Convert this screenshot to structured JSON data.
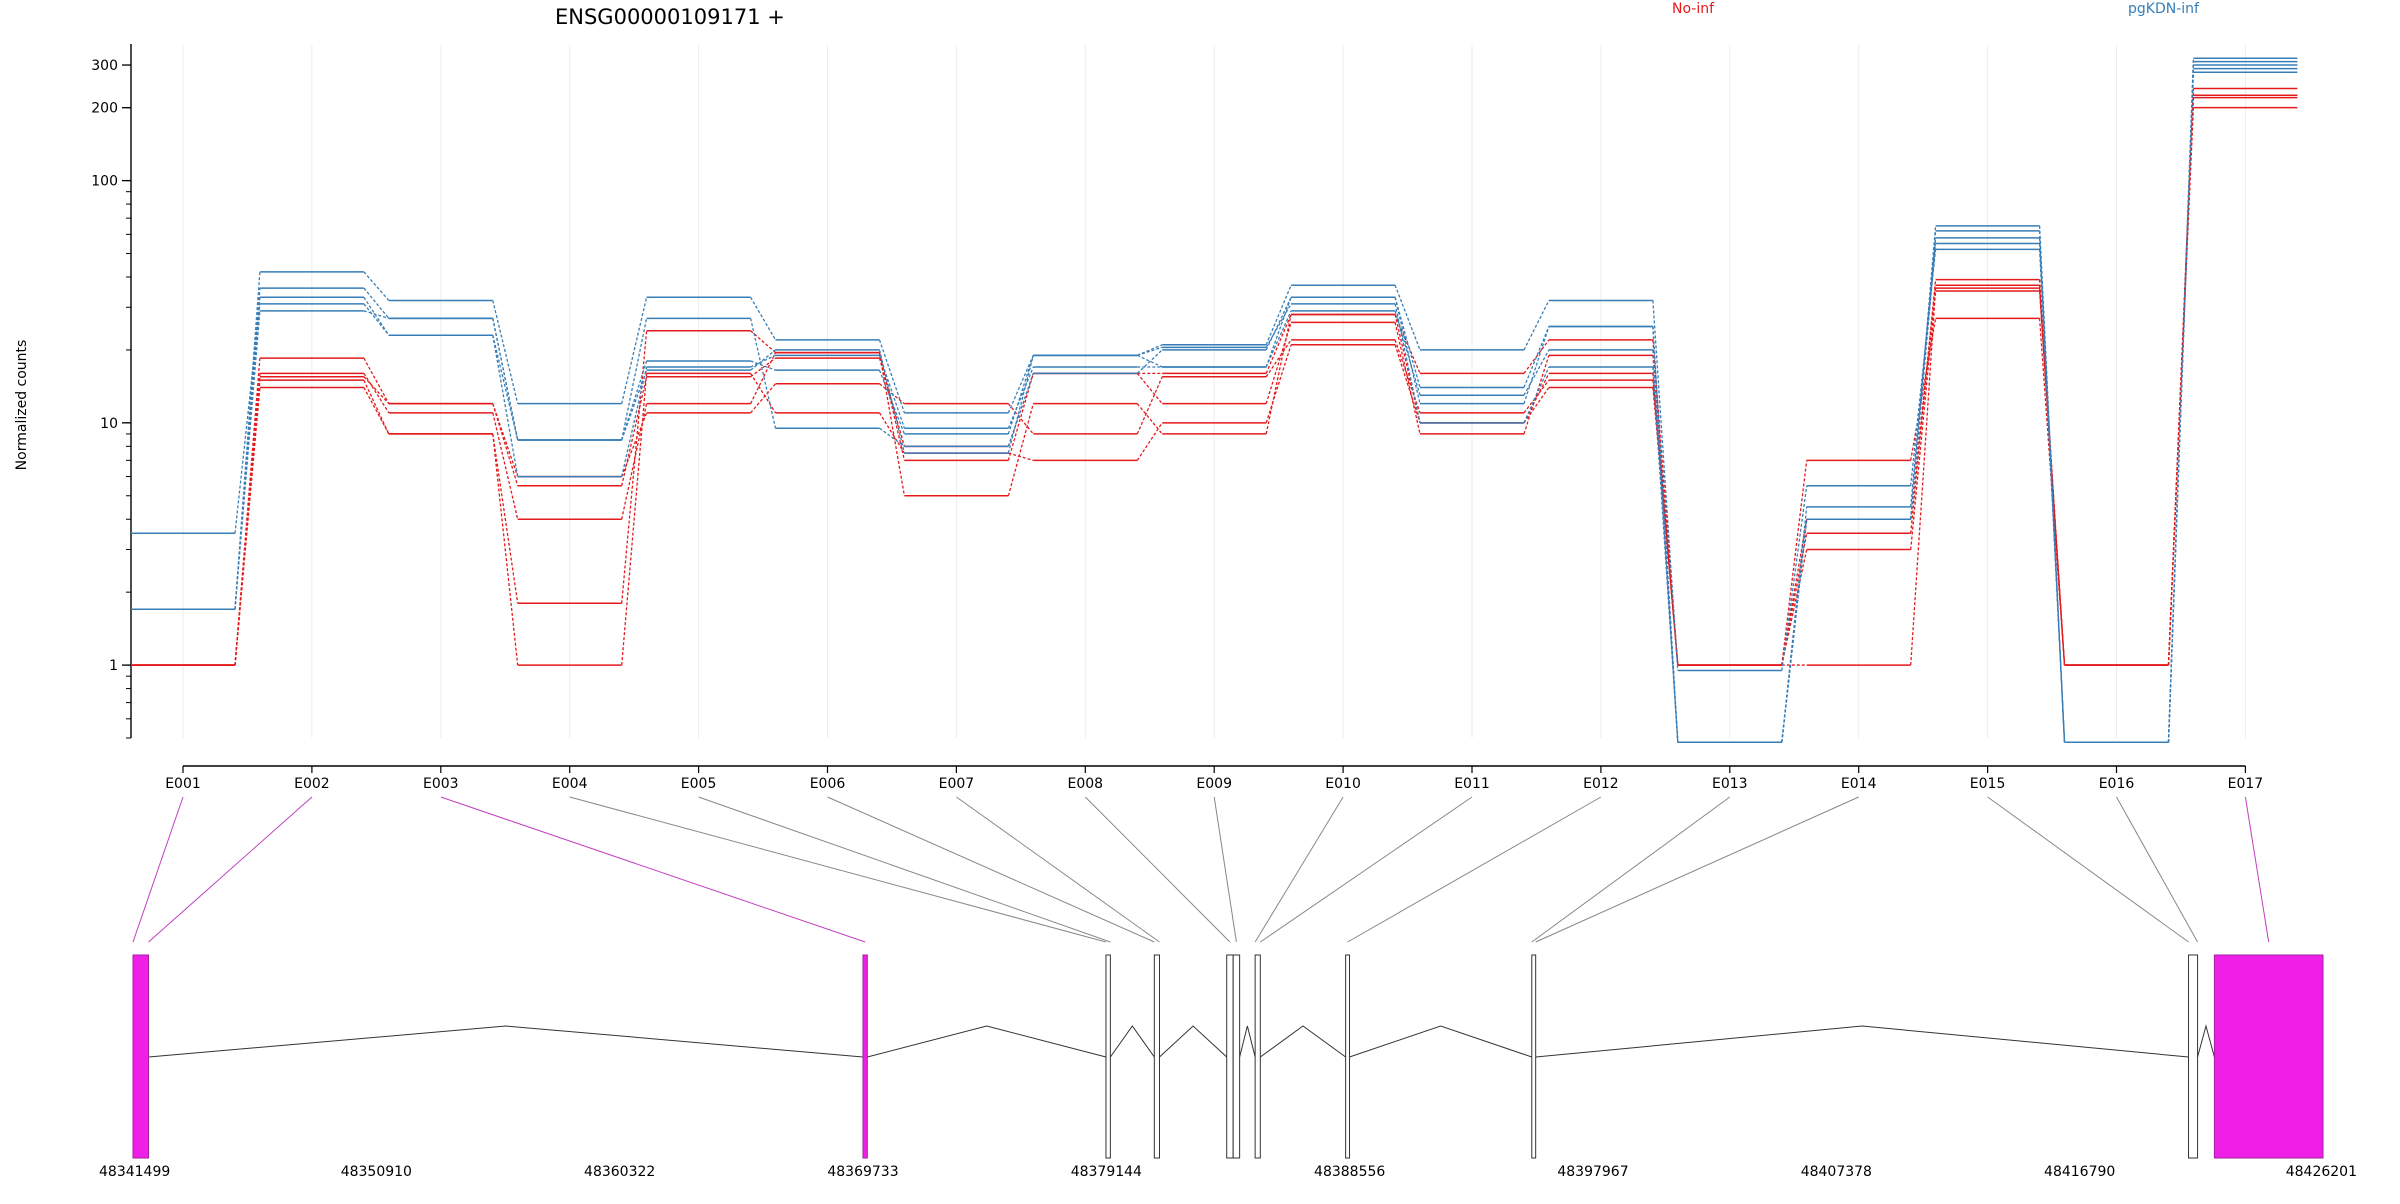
{
  "chart_data": {
    "type": "line",
    "title": "ENSG00000109171 +",
    "ylabel": "Normalized counts",
    "xlabel": "",
    "y_scale": "log",
    "ylim": [
      0.5,
      330
    ],
    "y_ticks": [
      1,
      10,
      100,
      200,
      300
    ],
    "grid": "vertical-light",
    "legend_position": "top",
    "colors": {
      "No-inf": "#e41a1c",
      "pgKDN-inf": "#377eb8"
    },
    "legend": [
      {
        "name": "No-inf",
        "color": "#e41a1c"
      },
      {
        "name": "pgKDN-inf",
        "color": "#377eb8"
      }
    ],
    "categories": [
      "E001",
      "E002",
      "E003",
      "E004",
      "E005",
      "E006",
      "E007",
      "E008",
      "E009",
      "E010",
      "E011",
      "E012",
      "E013",
      "E014",
      "E015",
      "E016",
      "E017"
    ],
    "series": [
      {
        "group": "No-inf",
        "values": [
          1,
          18.5,
          12,
          6,
          11,
          14.5,
          12,
          9,
          15.5,
          22,
          11,
          15,
          1,
          7,
          27,
          1,
          200
        ]
      },
      {
        "group": "No-inf",
        "values": [
          1,
          16,
          11,
          4,
          12,
          19.5,
          5,
          12,
          9,
          28,
          16,
          22,
          1,
          4,
          37,
          1,
          220
        ]
      },
      {
        "group": "No-inf",
        "values": [
          1,
          14,
          9,
          1,
          16,
          11,
          7.5,
          7,
          10,
          21,
          10,
          14,
          1,
          3,
          35,
          1,
          225
        ]
      },
      {
        "group": "No-inf",
        "values": [
          1,
          15,
          9,
          1.8,
          24,
          19.5,
          7,
          16,
          12,
          26,
          9,
          19,
          1,
          1,
          36,
          1,
          240
        ]
      },
      {
        "group": "No-inf",
        "values": [
          1,
          15.5,
          12,
          5.5,
          15.5,
          18.5,
          8,
          16,
          16,
          28,
          10,
          16,
          1,
          3.5,
          39,
          1,
          225
        ]
      },
      {
        "group": "pgKDN-inf",
        "values": [
          1.7,
          42,
          32,
          12,
          33,
          22,
          11,
          19,
          21,
          37,
          20,
          32,
          0.95,
          5.5,
          52,
          0.48,
          300
        ]
      },
      {
        "group": "pgKDN-inf",
        "values": [
          1.7,
          36,
          27,
          8.5,
          18,
          16.5,
          9,
          19,
          17,
          33,
          14,
          25,
          0.48,
          4.5,
          58,
          0.48,
          290
        ]
      },
      {
        "group": "pgKDN-inf",
        "values": [
          3.5,
          31,
          23,
          6,
          17,
          19,
          9.5,
          17,
          17,
          29,
          13,
          20,
          0.48,
          4,
          62,
          0.48,
          280
        ]
      },
      {
        "group": "pgKDN-inf",
        "values": [
          1.7,
          29,
          27,
          8.5,
          27,
          9.5,
          8,
          16,
          20,
          33,
          12,
          25,
          0.48,
          4,
          65,
          0.48,
          310
        ]
      },
      {
        "group": "pgKDN-inf",
        "values": [
          1.7,
          33,
          23,
          8.5,
          16.5,
          20,
          7.5,
          19,
          20.5,
          31,
          10,
          17,
          0.48,
          4,
          55,
          0.48,
          320
        ]
      }
    ],
    "gene_model": {
      "genomic_axis_ticks": [
        "48341499",
        "48350910",
        "48360322",
        "48369733",
        "48379144",
        "48388556",
        "48397967",
        "48407378",
        "48416790",
        "48426201"
      ],
      "genomic_range": [
        48341499,
        48426201
      ],
      "exons": [
        {
          "start": 48341499,
          "end": 48342100,
          "highlighted": true,
          "links": [
            "E001",
            "E002"
          ]
        },
        {
          "start": 48369733,
          "end": 48369900,
          "highlighted": true,
          "links": [
            "E003"
          ]
        },
        {
          "start": 48379130,
          "end": 48379300,
          "highlighted": false,
          "links": [
            "E004",
            "E005"
          ]
        },
        {
          "start": 48381000,
          "end": 48381200,
          "highlighted": false,
          "links": [
            "E006",
            "E007"
          ]
        },
        {
          "start": 48383800,
          "end": 48384050,
          "highlighted": false,
          "links": [
            "E008"
          ]
        },
        {
          "start": 48384050,
          "end": 48384300,
          "highlighted": false,
          "links": [
            "E009"
          ]
        },
        {
          "start": 48384900,
          "end": 48385100,
          "highlighted": false,
          "links": [
            "E010",
            "E011"
          ]
        },
        {
          "start": 48388400,
          "end": 48388550,
          "highlighted": false,
          "links": [
            "E012"
          ]
        },
        {
          "start": 48395600,
          "end": 48395750,
          "highlighted": false,
          "links": [
            "E013",
            "E014"
          ]
        },
        {
          "start": 48421000,
          "end": 48421350,
          "highlighted": false,
          "links": [
            "E015",
            "E016"
          ]
        },
        {
          "start": 48422000,
          "end": 48426201,
          "highlighted": true,
          "links": [
            "E017"
          ]
        }
      ]
    },
    "accent_colors": {
      "highlight_exon": "#f01fe8",
      "highlight_link": "#c040c0",
      "link": "#888888"
    }
  }
}
